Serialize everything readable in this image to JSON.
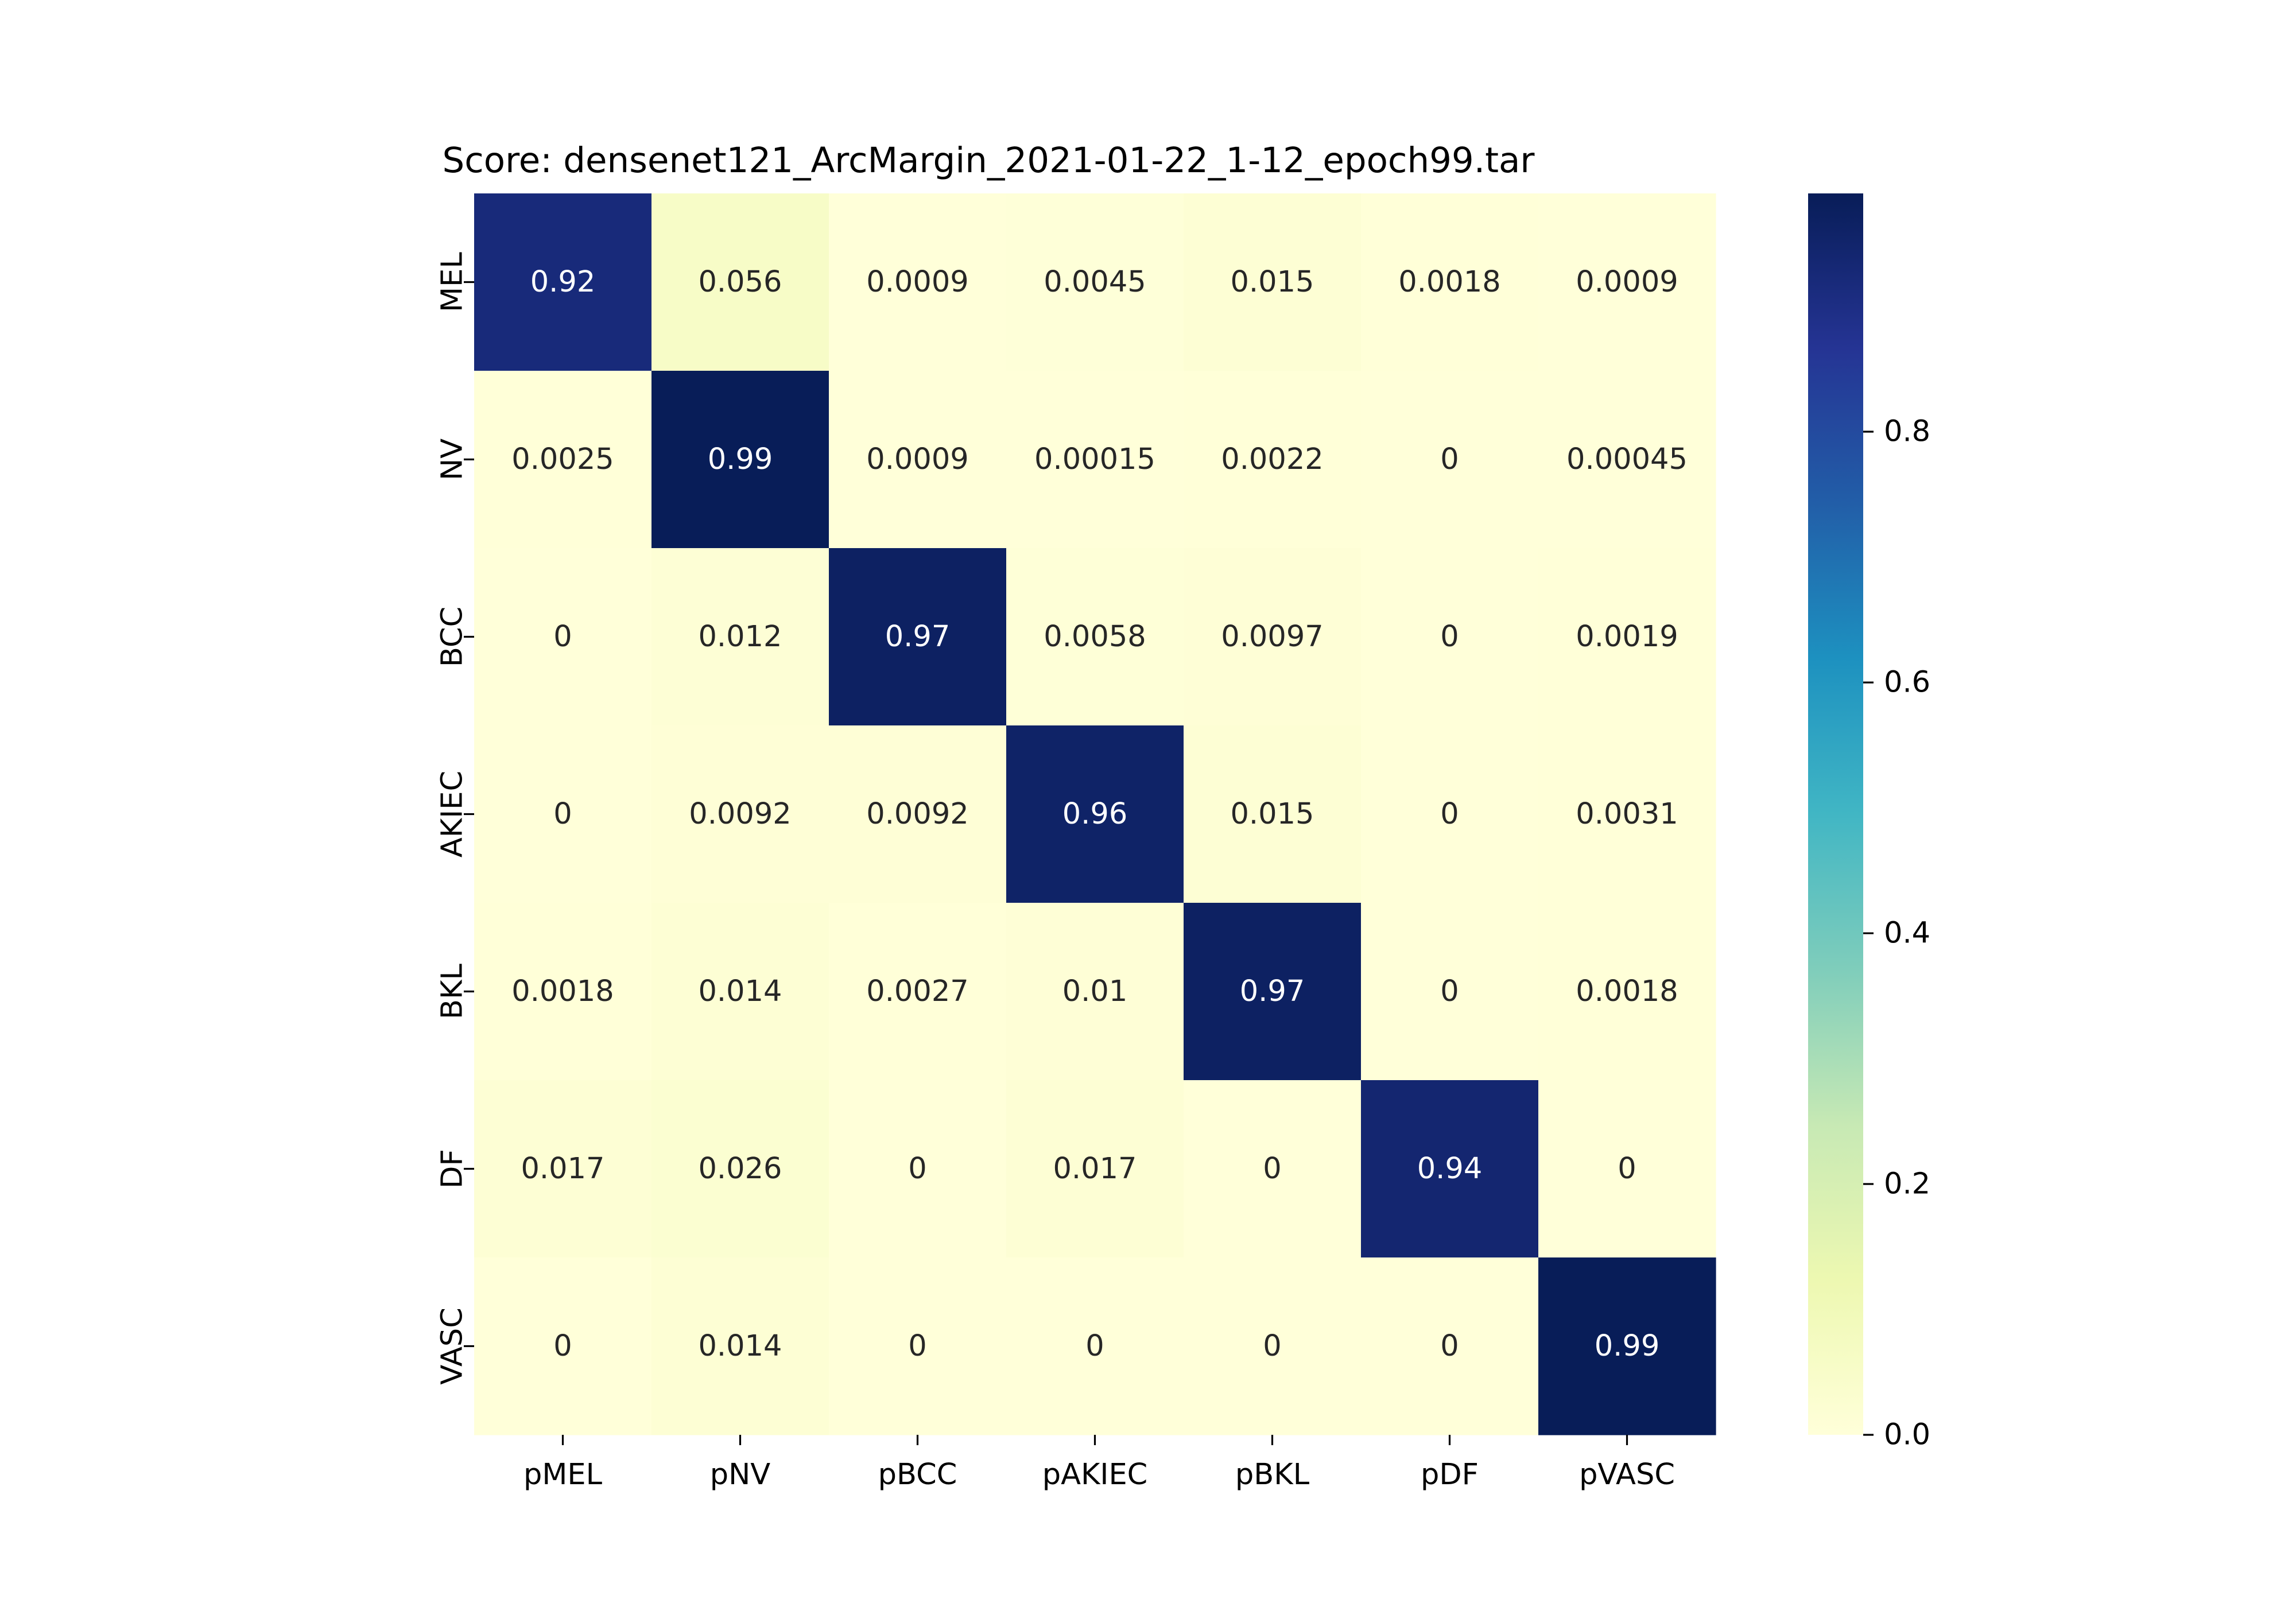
{
  "chart_data": {
    "type": "heatmap",
    "title": "Score: densenet121_ArcMargin_2021-01-22_1-12_epoch99.tar",
    "xlabel": "",
    "ylabel": "",
    "x_categories": [
      "pMEL",
      "pNV",
      "pBCC",
      "pAKIEC",
      "pBKL",
      "pDF",
      "pVASC"
    ],
    "y_categories": [
      "MEL",
      "NV",
      "BCC",
      "AKIEC",
      "BKL",
      "DF",
      "VASC"
    ],
    "values": [
      [
        0.92,
        0.056,
        0.0009,
        0.0045,
        0.015,
        0.0018,
        0.0009
      ],
      [
        0.0025,
        0.99,
        0.0009,
        0.00015,
        0.0022,
        0,
        0.00045
      ],
      [
        0,
        0.012,
        0.97,
        0.0058,
        0.0097,
        0,
        0.0019
      ],
      [
        0,
        0.0092,
        0.0092,
        0.96,
        0.015,
        0,
        0.0031
      ],
      [
        0.0018,
        0.014,
        0.0027,
        0.01,
        0.97,
        0,
        0.0018
      ],
      [
        0.017,
        0.026,
        0,
        0.017,
        0,
        0.94,
        0
      ],
      [
        0,
        0.014,
        0,
        0,
        0,
        0,
        0.99
      ]
    ],
    "cell_labels": [
      [
        "0.92",
        "0.056",
        "0.0009",
        "0.0045",
        "0.015",
        "0.0018",
        "0.0009"
      ],
      [
        "0.0025",
        "0.99",
        "0.0009",
        "0.00015",
        "0.0022",
        "0",
        "0.00045"
      ],
      [
        "0",
        "0.012",
        "0.97",
        "0.0058",
        "0.0097",
        "0",
        "0.0019"
      ],
      [
        "0",
        "0.0092",
        "0.0092",
        "0.96",
        "0.015",
        "0",
        "0.0031"
      ],
      [
        "0.0018",
        "0.014",
        "0.0027",
        "0.01",
        "0.97",
        "0",
        "0.0018"
      ],
      [
        "0.017",
        "0.026",
        "0",
        "0.017",
        "0",
        "0.94",
        "0"
      ],
      [
        "0",
        "0.014",
        "0",
        "0",
        "0",
        "0",
        "0.99"
      ]
    ],
    "colormap": "YlGnBu",
    "colorbar": {
      "range": [
        0,
        0.99
      ],
      "ticks": [
        0,
        0.2,
        0.4,
        0.6,
        0.8
      ],
      "tick_labels": [
        "0.0",
        "0.2",
        "0.4",
        "0.6",
        "0.8"
      ]
    },
    "grid": false,
    "legend": "colorbar-right"
  }
}
